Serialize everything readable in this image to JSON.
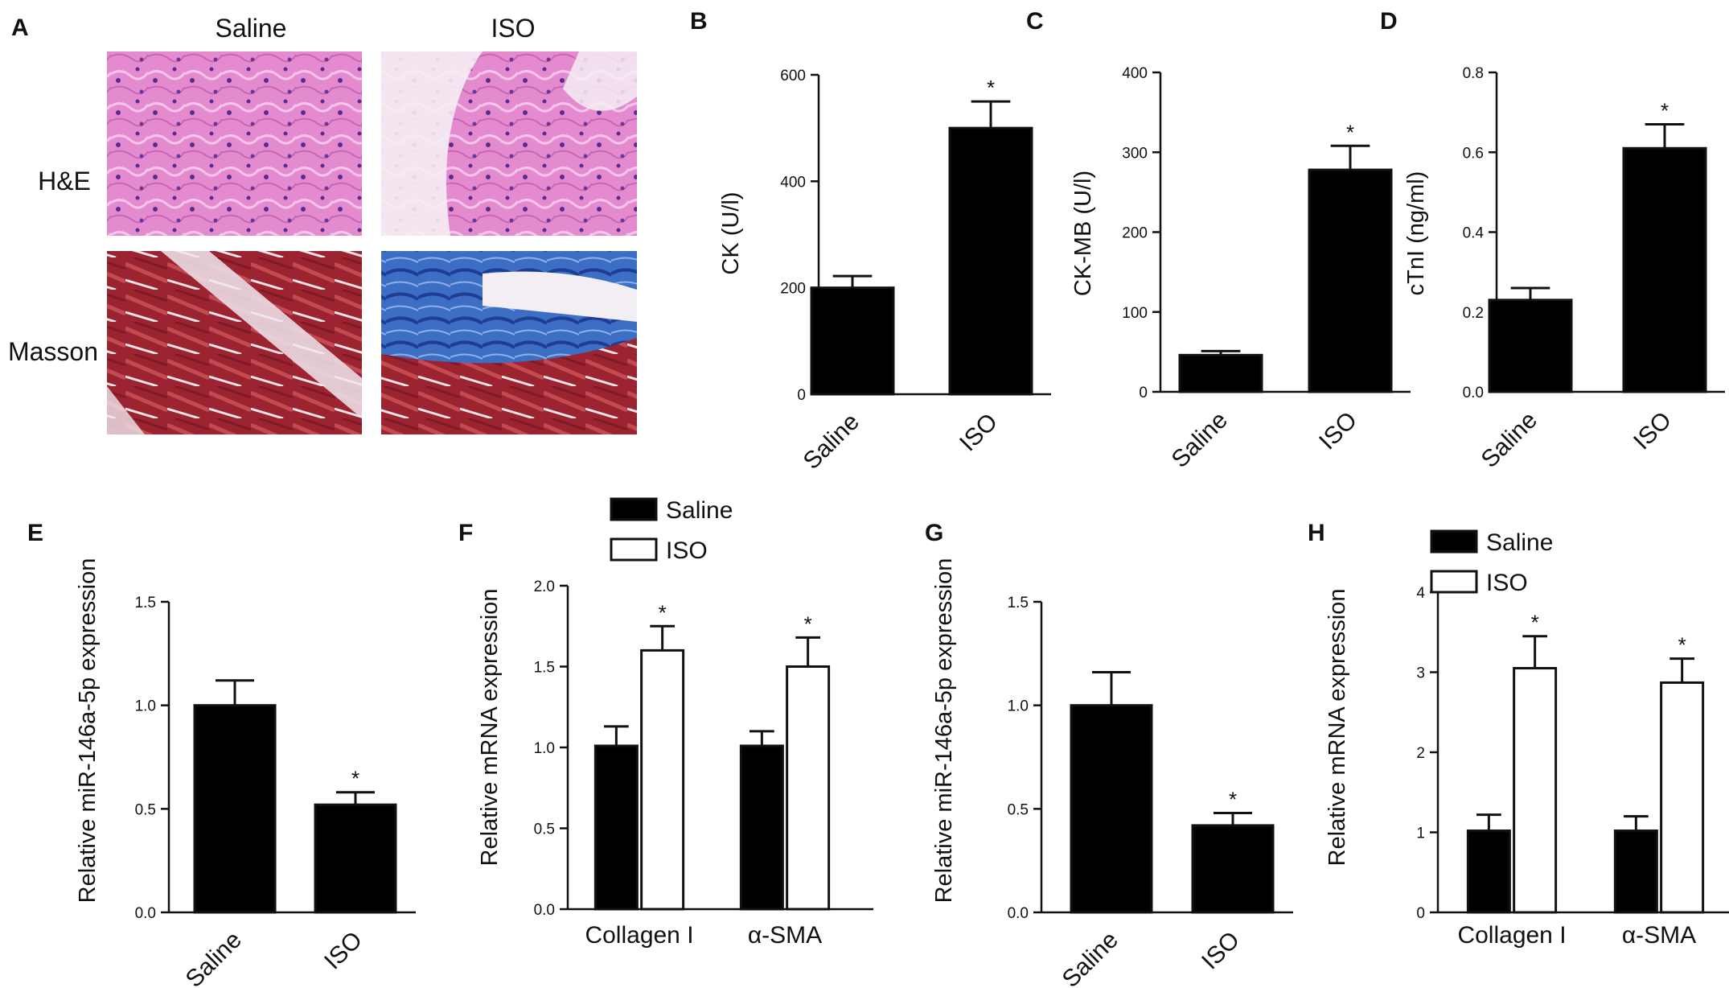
{
  "histology": {
    "letter": "A",
    "columns": [
      "Saline",
      "ISO"
    ],
    "rows": [
      "H&E",
      "Masson"
    ]
  },
  "significance_marker": "*",
  "chart_data": [
    {
      "id": "B",
      "letter": "B",
      "type": "bar",
      "variant": "solid",
      "categories": [
        "Saline",
        "ISO"
      ],
      "values": [
        200,
        500
      ],
      "errors": [
        22,
        50
      ],
      "significant": [
        false,
        true
      ],
      "ylabel": "CK (U/l)",
      "ylim": [
        0,
        600
      ],
      "yticks": [
        "0",
        "200",
        "400",
        "600"
      ],
      "grid": false,
      "legend": null
    },
    {
      "id": "C",
      "letter": "C",
      "type": "bar",
      "variant": "solid",
      "categories": [
        "Saline",
        "ISO"
      ],
      "values": [
        46,
        278
      ],
      "errors": [
        5,
        30
      ],
      "significant": [
        false,
        true
      ],
      "ylabel": "CK-MB (U/l)",
      "ylim": [
        0,
        400
      ],
      "yticks": [
        "0",
        "100",
        "200",
        "300",
        "400"
      ],
      "grid": false,
      "legend": null
    },
    {
      "id": "D",
      "letter": "D",
      "type": "bar",
      "variant": "solid",
      "categories": [
        "Saline",
        "ISO"
      ],
      "values": [
        0.23,
        0.61
      ],
      "errors": [
        0.03,
        0.06
      ],
      "significant": [
        false,
        true
      ],
      "ylabel": "cTnI (ng/ml)",
      "ylim": [
        0,
        0.8
      ],
      "yticks": [
        "0.0",
        "0.2",
        "0.4",
        "0.6",
        "0.8"
      ],
      "grid": false,
      "legend": null
    },
    {
      "id": "E",
      "letter": "E",
      "type": "bar",
      "variant": "solid",
      "categories": [
        "Saline",
        "ISO"
      ],
      "values": [
        1.0,
        0.52
      ],
      "errors": [
        0.12,
        0.06
      ],
      "significant": [
        false,
        true
      ],
      "ylabel": "Relative miR-146a-5p expression",
      "ylim": [
        0,
        1.5
      ],
      "yticks": [
        "0.0",
        "0.5",
        "1.0",
        "1.5"
      ],
      "grid": false,
      "legend": null
    },
    {
      "id": "F",
      "letter": "F",
      "type": "bar",
      "variant": "grouped",
      "categories": [
        "Collagen I",
        "α-SMA"
      ],
      "series": [
        {
          "name": "Saline",
          "fill": "#000000",
          "values": [
            1.01,
            1.01
          ],
          "errors": [
            0.12,
            0.09
          ],
          "significant": [
            false,
            false
          ]
        },
        {
          "name": "ISO",
          "fill": "#ffffff",
          "values": [
            1.6,
            1.5
          ],
          "errors": [
            0.15,
            0.18
          ],
          "significant": [
            true,
            true
          ]
        }
      ],
      "ylabel": "Relative mRNA expression",
      "ylim": [
        0,
        2.0
      ],
      "yticks": [
        "0.0",
        "0.5",
        "1.0",
        "1.5",
        "2.0"
      ],
      "grid": false,
      "legend": "top"
    },
    {
      "id": "G",
      "letter": "G",
      "type": "bar",
      "variant": "solid",
      "categories": [
        "Saline",
        "ISO"
      ],
      "values": [
        1.0,
        0.42
      ],
      "errors": [
        0.16,
        0.06
      ],
      "significant": [
        false,
        true
      ],
      "ylabel": "Relative miR-146a-5p expression",
      "ylim": [
        0,
        1.5
      ],
      "yticks": [
        "0.0",
        "0.5",
        "1.0",
        "1.5"
      ],
      "grid": false,
      "legend": null
    },
    {
      "id": "H",
      "letter": "H",
      "type": "bar",
      "variant": "grouped",
      "categories": [
        "Collagen I",
        "α-SMA"
      ],
      "series": [
        {
          "name": "Saline",
          "fill": "#000000",
          "values": [
            1.02,
            1.02
          ],
          "errors": [
            0.2,
            0.18
          ],
          "significant": [
            false,
            false
          ]
        },
        {
          "name": "ISO",
          "fill": "#ffffff",
          "values": [
            3.05,
            2.87
          ],
          "errors": [
            0.4,
            0.3
          ],
          "significant": [
            true,
            true
          ]
        }
      ],
      "ylabel": "Relative mRNA expression",
      "ylim": [
        0,
        4
      ],
      "yticks": [
        "0",
        "1",
        "2",
        "3",
        "4"
      ],
      "grid": false,
      "legend": "top"
    }
  ]
}
